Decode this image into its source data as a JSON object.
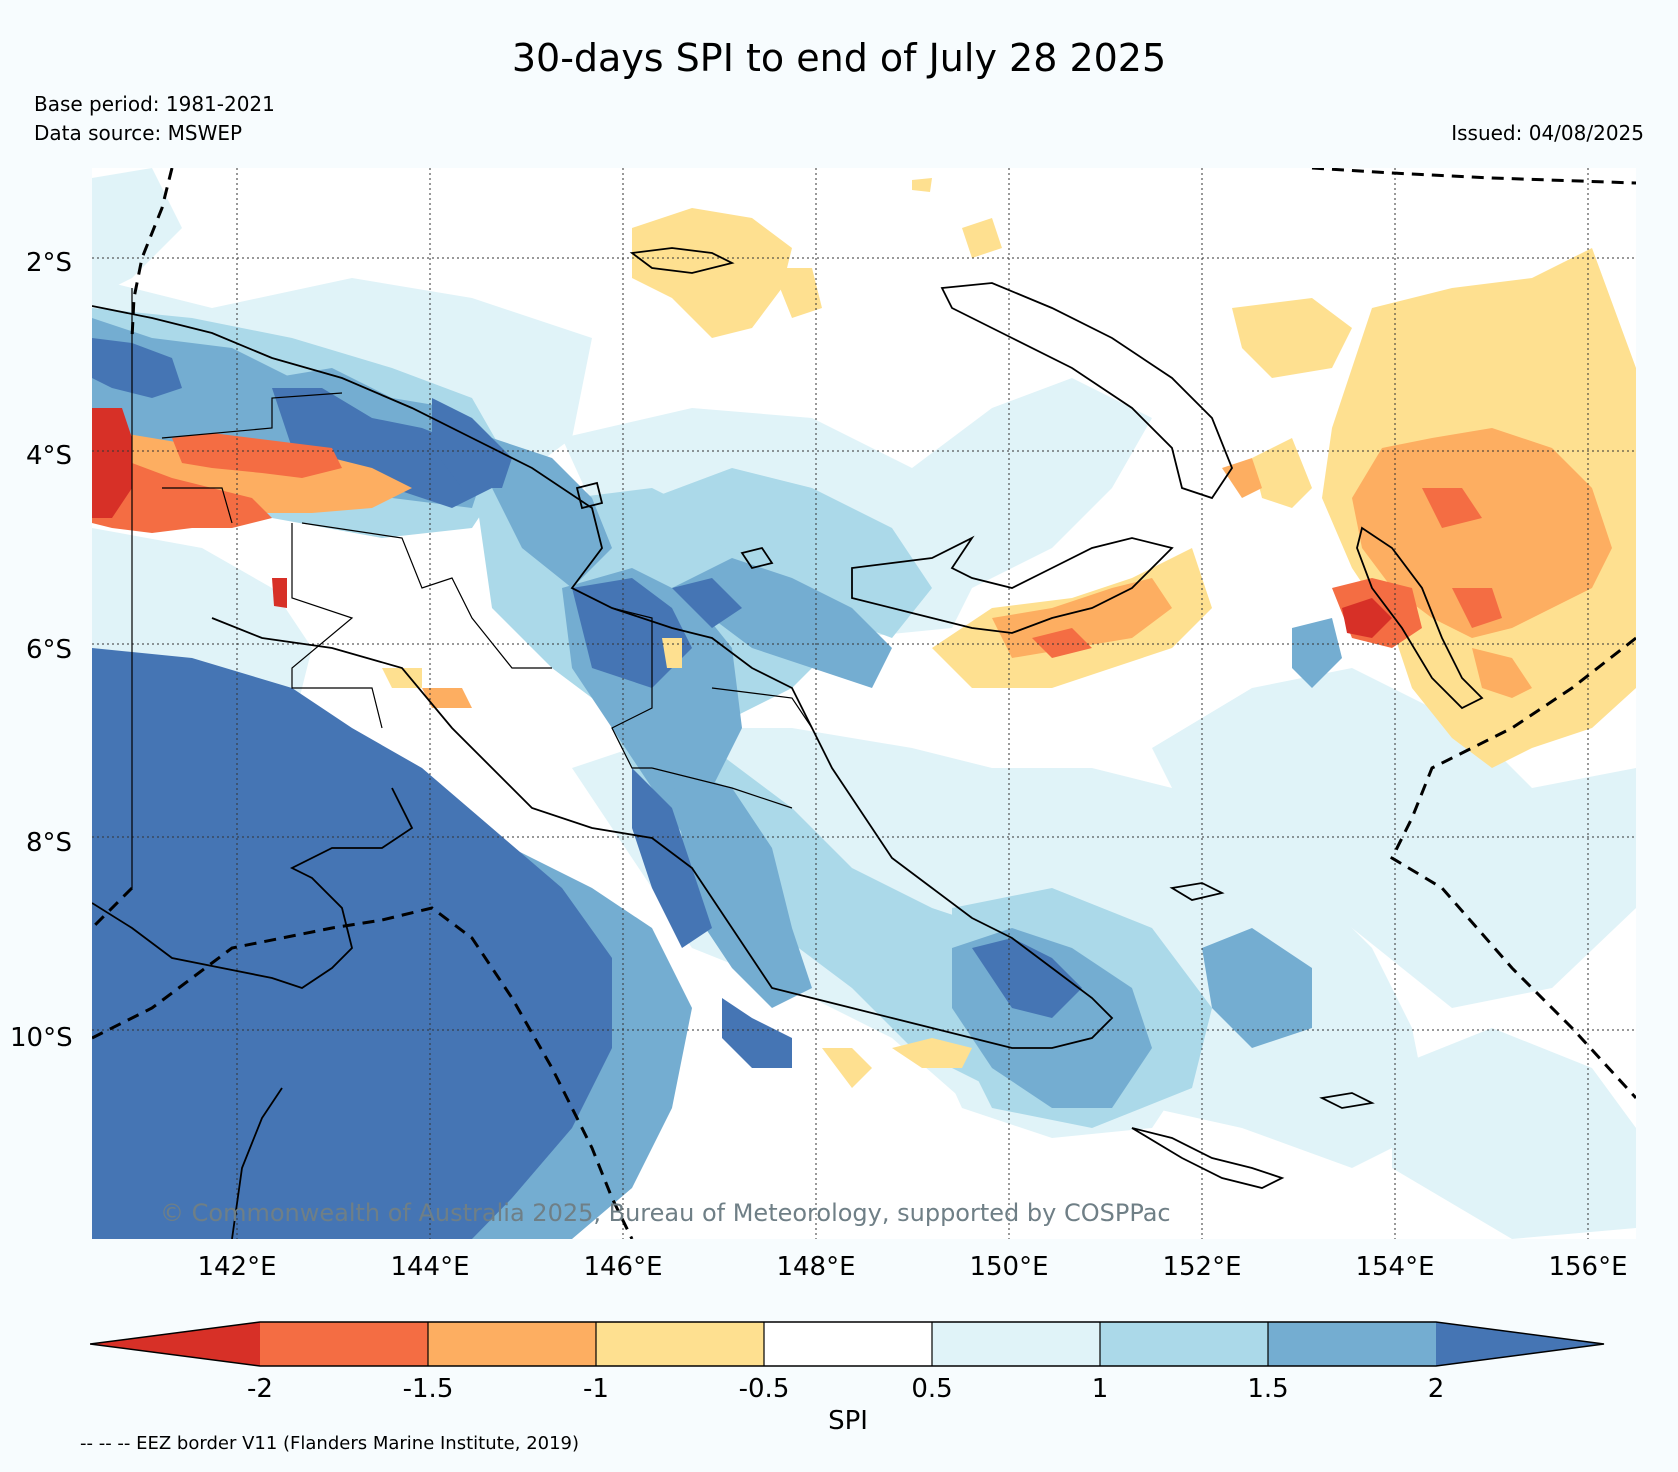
{
  "title": "30-days SPI to end of July 28 2025",
  "base_period": "Base period: 1981-2021",
  "data_source": "Data source: MSWEP",
  "issued": "Issued: 04/08/2025",
  "lat_labels": [
    "2°S",
    "4°S",
    "6°S",
    "8°S",
    "10°S"
  ],
  "lon_labels": [
    "142°E",
    "144°E",
    "146°E",
    "148°E",
    "150°E",
    "152°E",
    "154°E",
    "156°E"
  ],
  "copyright": "© Commonwealth of Australia 2025, Bureau of Meteorology, supported by COSPPac",
  "colorbar": {
    "label": "SPI",
    "ticks": [
      "-2",
      "-1.5",
      "-1",
      "-0.5",
      "0.5",
      "1",
      "1.5",
      "2"
    ],
    "colors": [
      "#d73027",
      "#f46d43",
      "#fdae61",
      "#fee090",
      "#ffffff",
      "#e0f3f8",
      "#abd9e9",
      "#74add1",
      "#4575b4"
    ]
  },
  "eez_note": "-- -- -- EEZ border V11 (Flanders Marine Institute, 2019)"
}
